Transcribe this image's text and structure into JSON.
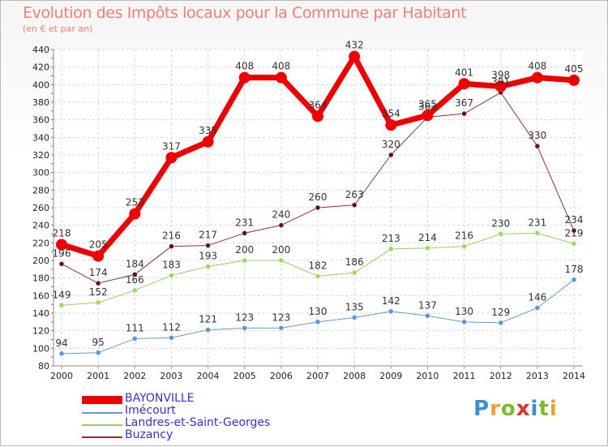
{
  "header": {
    "title": "Evolution des Impôts locaux pour la Commune par Habitant",
    "subtitle": "(en € et par an)"
  },
  "logo": {
    "letters": [
      "P",
      "r",
      "o",
      "x",
      "i",
      "t",
      "i"
    ],
    "colors": [
      "#3a8fd0",
      "#f0a030",
      "#7dbb2e",
      "#e03030",
      "#3a8fd0",
      "#7dbb2e",
      "#f0a030"
    ]
  },
  "chart_data": {
    "type": "line",
    "title": "Evolution des Impôts locaux pour la Commune par Habitant",
    "subtitle": "(en € et par an)",
    "x": [
      "2000",
      "2001",
      "2002",
      "2003",
      "2004",
      "2005",
      "2006",
      "2007",
      "2008",
      "2009",
      "2010",
      "2011",
      "2012",
      "2013",
      "2014"
    ],
    "ylim": [
      80,
      440
    ],
    "yticks": [
      80,
      100,
      120,
      140,
      160,
      180,
      200,
      220,
      240,
      260,
      280,
      300,
      320,
      340,
      360,
      380,
      400,
      420,
      440
    ],
    "grid": true,
    "legend_position": "bottom-left",
    "series": [
      {
        "name": "BAYONVILLE",
        "color": "#ee0000",
        "values": [
          218,
          205,
          253,
          317,
          335,
          408,
          408,
          364,
          432,
          354,
          365,
          401,
          398,
          408,
          405
        ]
      },
      {
        "name": "Imécourt",
        "color": "#6699cc",
        "values": [
          94,
          95,
          111,
          112,
          121,
          123,
          123,
          130,
          135,
          142,
          137,
          130,
          129,
          146,
          178
        ]
      },
      {
        "name": "Landres-et-Saint-Georges",
        "color": "#99cc66",
        "values": [
          149,
          152,
          166,
          183,
          193,
          200,
          200,
          182,
          186,
          213,
          214,
          216,
          230,
          231,
          219
        ]
      },
      {
        "name": "Buzancy",
        "color": "#883333",
        "values": [
          196,
          174,
          184,
          216,
          217,
          231,
          240,
          260,
          263,
          320,
          363,
          367,
          391,
          330,
          234
        ]
      }
    ]
  }
}
